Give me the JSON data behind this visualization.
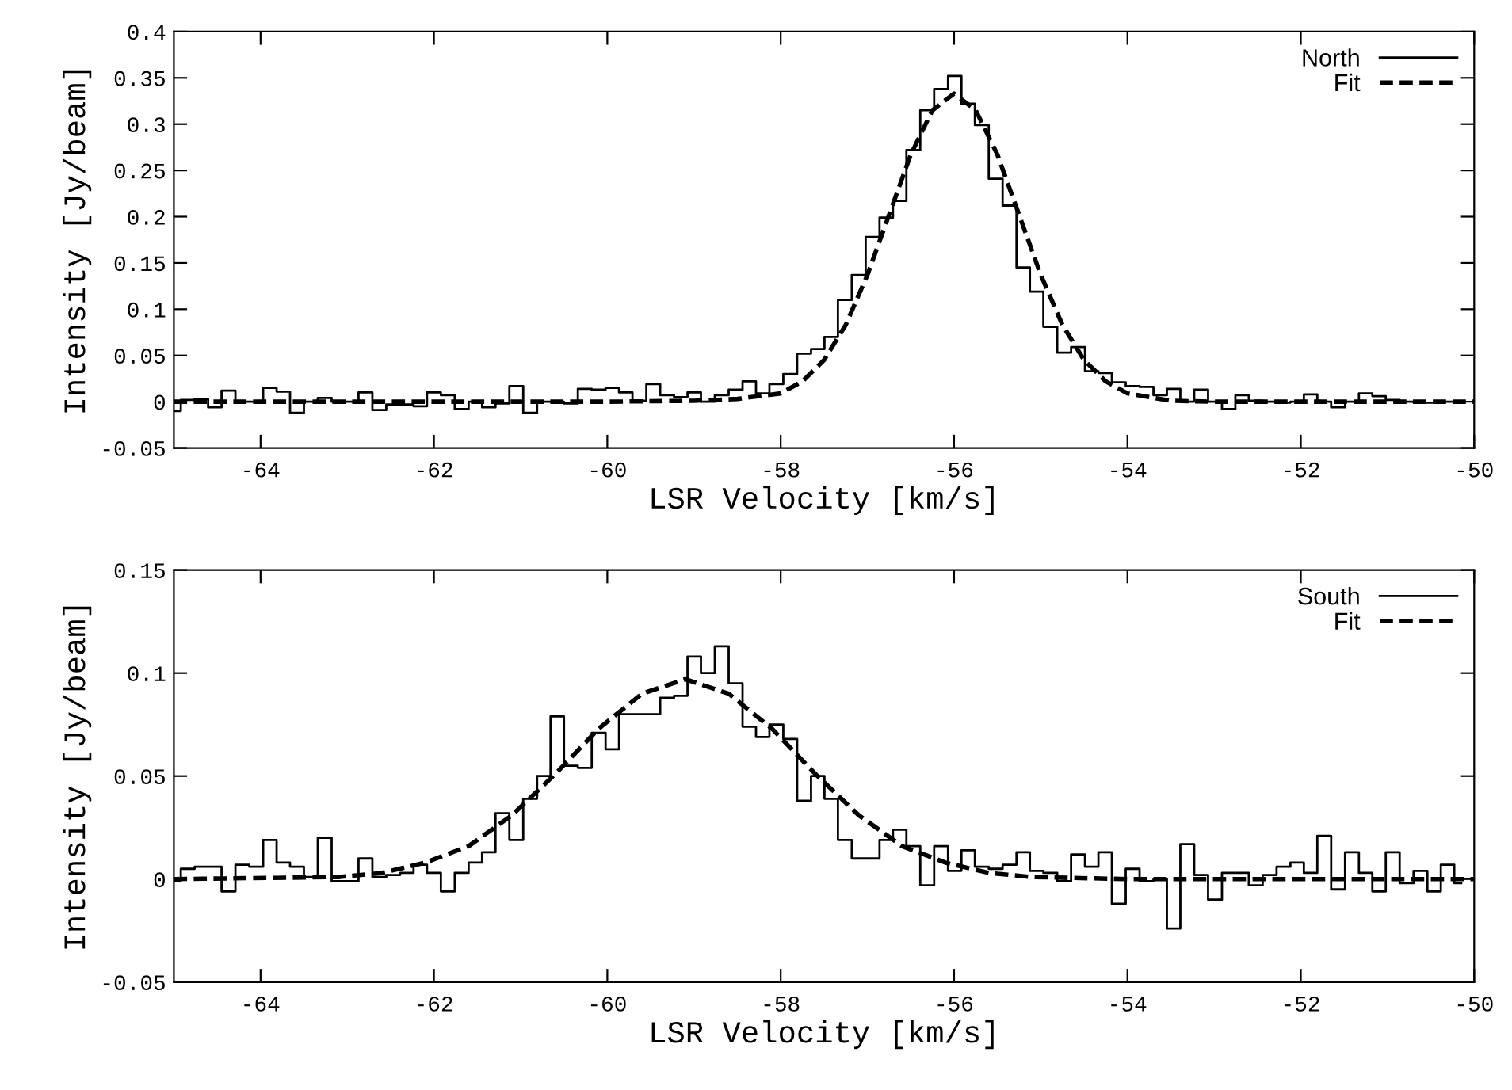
{
  "chart_data": [
    {
      "type": "step",
      "xlabel": "LSR Velocity [km/s]",
      "ylabel": "Intensity [Jy/beam]",
      "xlim": [
        -65,
        -50
      ],
      "ylim": [
        -0.05,
        0.4
      ],
      "xticks": [
        -64,
        -62,
        -60,
        -58,
        -56,
        -54,
        -52,
        -50
      ],
      "yticks": [
        -0.05,
        0,
        0.05,
        0.1,
        0.15,
        0.2,
        0.25,
        0.3,
        0.35,
        0.4
      ],
      "grid": false,
      "legend": "top right",
      "x": [
        -65.0,
        -64.84,
        -64.68,
        -64.53,
        -64.37,
        -64.21,
        -64.05,
        -63.89,
        -63.74,
        -63.58,
        -63.42,
        -63.26,
        -63.1,
        -62.95,
        -62.79,
        -62.63,
        -62.47,
        -62.31,
        -62.16,
        -62.0,
        -61.84,
        -61.68,
        -61.52,
        -61.37,
        -61.21,
        -61.05,
        -60.89,
        -60.73,
        -60.58,
        -60.42,
        -60.26,
        -60.1,
        -59.94,
        -59.79,
        -59.63,
        -59.47,
        -59.31,
        -59.15,
        -59.0,
        -58.84,
        -58.68,
        -58.52,
        -58.36,
        -58.21,
        -58.05,
        -57.89,
        -57.73,
        -57.57,
        -57.42,
        -57.26,
        -57.1,
        -56.94,
        -56.78,
        -56.63,
        -56.47,
        -56.31,
        -56.15,
        -55.99,
        -55.84,
        -55.68,
        -55.52,
        -55.36,
        -55.2,
        -55.05,
        -54.89,
        -54.73,
        -54.57,
        -54.41,
        -54.26,
        -54.1,
        -53.94,
        -53.78,
        -53.62,
        -53.47,
        -53.31,
        -53.15,
        -52.99,
        -52.83,
        -52.68,
        -52.52,
        -52.36,
        -52.2,
        -52.04,
        -51.89,
        -51.73,
        -51.57,
        -51.41,
        -51.25,
        -51.1,
        -50.94,
        -50.78,
        -50.62,
        -50.46,
        -50.31,
        -50.15
      ],
      "series": [
        {
          "name": "North",
          "color": "#000000",
          "line_style": "solid",
          "values": [
            -0.01,
            0.002,
            0.003,
            -0.006,
            0.012,
            0.0,
            0.0,
            0.015,
            0.011,
            -0.012,
            0.0,
            0.004,
            0.0,
            0.0,
            0.01,
            -0.009,
            -0.003,
            -0.003,
            -0.005,
            0.01,
            0.007,
            -0.008,
            0.0,
            -0.006,
            -0.002,
            0.017,
            -0.012,
            0.0,
            0.0,
            -0.002,
            0.014,
            0.013,
            0.015,
            0.01,
            0.001,
            0.019,
            0.007,
            0.005,
            0.01,
            0.0,
            0.007,
            0.013,
            0.022,
            0.009,
            0.019,
            0.03,
            0.052,
            0.057,
            0.07,
            0.11,
            0.137,
            0.178,
            0.199,
            0.217,
            0.272,
            0.315,
            0.338,
            0.352,
            0.322,
            0.299,
            0.241,
            0.212,
            0.145,
            0.119,
            0.081,
            0.053,
            0.059,
            0.033,
            0.031,
            0.021,
            0.017,
            0.016,
            0.007,
            0.014,
            0.0,
            0.013,
            0.0,
            -0.008,
            0.007,
            0.001,
            0.0,
            -0.001,
            0.0,
            0.008,
            0.0,
            -0.006,
            0.0,
            0.009,
            0.006,
            0.002,
            0.0,
            -0.001,
            -0.001,
            0.0,
            0.0
          ]
        },
        {
          "name": "Fit",
          "type": "line",
          "color": "#000000",
          "line_style": "dashed",
          "x": [
            -65,
            -60,
            -59,
            -58.5,
            -58,
            -57.75,
            -57.5,
            -57.25,
            -57,
            -56.75,
            -56.5,
            -56.25,
            -56,
            -55.75,
            -55.5,
            -55.25,
            -55,
            -54.75,
            -54.5,
            -54.25,
            -54,
            -53.5,
            -53,
            -52,
            -50
          ],
          "values": [
            0,
            0,
            0.001,
            0.003,
            0.009,
            0.022,
            0.045,
            0.083,
            0.137,
            0.202,
            0.267,
            0.315,
            0.333,
            0.315,
            0.267,
            0.202,
            0.137,
            0.083,
            0.045,
            0.022,
            0.009,
            0.001,
            0,
            0,
            0
          ]
        }
      ]
    },
    {
      "type": "step",
      "xlabel": "LSR Velocity [km/s]",
      "ylabel": "Intensity [Jy/beam]",
      "xlim": [
        -65,
        -50
      ],
      "ylim": [
        -0.05,
        0.15
      ],
      "xticks": [
        -64,
        -62,
        -60,
        -58,
        -56,
        -54,
        -52,
        -50
      ],
      "yticks": [
        -0.05,
        0,
        0.05,
        0.1,
        0.15
      ],
      "grid": false,
      "legend": "top right",
      "x": [
        -65.0,
        -64.84,
        -64.68,
        -64.53,
        -64.37,
        -64.21,
        -64.05,
        -63.89,
        -63.74,
        -63.58,
        -63.42,
        -63.26,
        -63.1,
        -62.95,
        -62.79,
        -62.63,
        -62.47,
        -62.31,
        -62.16,
        -62.0,
        -61.84,
        -61.68,
        -61.52,
        -61.37,
        -61.21,
        -61.05,
        -60.89,
        -60.73,
        -60.58,
        -60.42,
        -60.26,
        -60.1,
        -59.94,
        -59.79,
        -59.63,
        -59.47,
        -59.31,
        -59.15,
        -59.0,
        -58.84,
        -58.68,
        -58.52,
        -58.36,
        -58.21,
        -58.05,
        -57.89,
        -57.73,
        -57.57,
        -57.42,
        -57.26,
        -57.1,
        -56.94,
        -56.78,
        -56.63,
        -56.47,
        -56.31,
        -56.15,
        -55.99,
        -55.84,
        -55.68,
        -55.52,
        -55.36,
        -55.2,
        -55.05,
        -54.89,
        -54.73,
        -54.57,
        -54.41,
        -54.26,
        -54.1,
        -53.94,
        -53.78,
        -53.62,
        -53.47,
        -53.31,
        -53.15,
        -52.99,
        -52.83,
        -52.68,
        -52.52,
        -52.36,
        -52.2,
        -52.04,
        -51.89,
        -51.73,
        -51.57,
        -51.41,
        -51.25,
        -51.1,
        -50.94,
        -50.78,
        -50.62,
        -50.46,
        -50.31,
        -50.15
      ],
      "series": [
        {
          "name": "South",
          "color": "#000000",
          "line_style": "solid",
          "values": [
            -0.001,
            0.005,
            0.006,
            0.006,
            -0.006,
            0.007,
            0.006,
            0.019,
            0.008,
            0.006,
            0.001,
            0.02,
            -0.001,
            -0.001,
            0.01,
            0.001,
            0.002,
            0.003,
            0.007,
            0.003,
            -0.006,
            0.003,
            0.008,
            0.013,
            0.032,
            0.019,
            0.039,
            0.05,
            0.079,
            0.055,
            0.054,
            0.071,
            0.063,
            0.08,
            0.08,
            0.08,
            0.088,
            0.089,
            0.108,
            0.1,
            0.113,
            0.095,
            0.074,
            0.069,
            0.075,
            0.068,
            0.038,
            0.05,
            0.039,
            0.019,
            0.01,
            0.01,
            0.019,
            0.024,
            0.016,
            -0.003,
            0.016,
            0.004,
            0.014,
            0.006,
            0.005,
            0.007,
            0.013,
            0.004,
            0.003,
            -0.001,
            0.012,
            0.006,
            0.013,
            -0.012,
            0.005,
            -0.001,
            0.0,
            -0.024,
            0.017,
            0.002,
            -0.01,
            0.003,
            0.003,
            -0.003,
            0.002,
            0.006,
            0.008,
            0.003,
            0.021,
            -0.005,
            0.013,
            0.003,
            -0.006,
            0.013,
            -0.002,
            0.004,
            -0.006,
            0.007,
            -0.002
          ]
        },
        {
          "name": "Fit",
          "type": "line",
          "color": "#000000",
          "line_style": "dashed",
          "x": [
            -65,
            -63.1,
            -62.6,
            -62.1,
            -61.6,
            -61.1,
            -60.6,
            -60.1,
            -59.6,
            -59.1,
            -58.6,
            -58.1,
            -57.6,
            -57.1,
            -56.6,
            -56.1,
            -55.6,
            -55.1,
            -54,
            -50
          ],
          "values": [
            0,
            0.001,
            0.003,
            0.008,
            0.016,
            0.031,
            0.051,
            0.073,
            0.09,
            0.097,
            0.09,
            0.073,
            0.051,
            0.031,
            0.016,
            0.008,
            0.003,
            0.001,
            0,
            0
          ]
        }
      ]
    }
  ]
}
